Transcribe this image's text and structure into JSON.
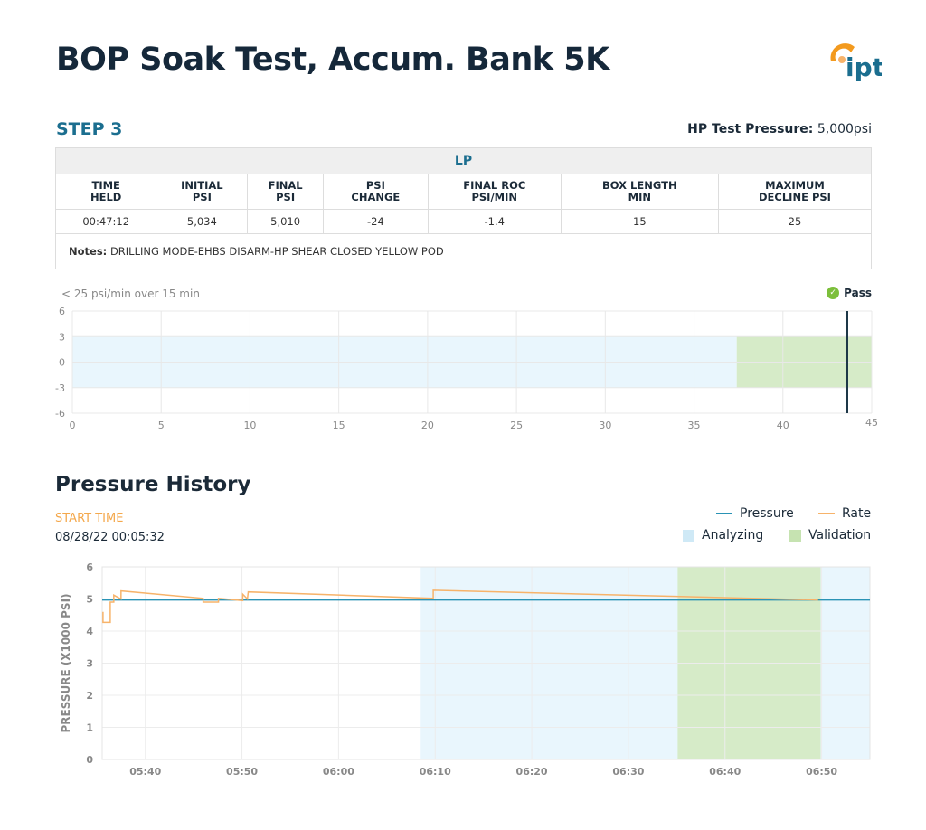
{
  "title": "BOP Soak Test, Accum. Bank 5K",
  "logo_text": "ipt",
  "step": "STEP 3",
  "hp_label": "HP Test Pressure:",
  "hp_value": "5,000psi",
  "table": {
    "section": "LP",
    "headers": [
      [
        "TIME",
        "HELD"
      ],
      [
        "INITIAL",
        "PSI"
      ],
      [
        "FINAL",
        "PSI"
      ],
      [
        "PSI",
        "CHANGE"
      ],
      [
        "FINAL ROC",
        "PSI/MIN"
      ],
      [
        "BOX LENGTH",
        "MIN"
      ],
      [
        "MAXIMUM",
        "DECLINE PSI"
      ]
    ],
    "values": [
      "00:47:12",
      "5,034",
      "5,010",
      "-24",
      "-1.4",
      "15",
      "25"
    ],
    "notes_label": "Notes:",
    "notes": "DRILLING MODE-EHBS DISARM-HP SHEAR CLOSED YELLOW POD"
  },
  "criteria": "< 25 psi/min over 15 min",
  "status": "Pass",
  "colors": {
    "pressure": "#2a93b5",
    "rate": "#f7b36a",
    "analyzing": "#e9f6fd",
    "validation": "#d6ebc8",
    "marker": "#1d3747",
    "pass": "#7cbf3b"
  },
  "chart_data": [
    {
      "type": "area",
      "title": "",
      "xlim": [
        0,
        45
      ],
      "ylim": [
        -6,
        6
      ],
      "xticks": [
        0,
        5,
        10,
        15,
        20,
        25,
        30,
        35,
        40,
        45
      ],
      "yticks": [
        6,
        3,
        0,
        -3,
        -6
      ],
      "grid": true,
      "band": [
        -3,
        3
      ],
      "analyzing": [
        0,
        37.4
      ],
      "validation": [
        37.4,
        45
      ],
      "marker_x": 43.6
    },
    {
      "type": "line",
      "title": "Pressure History",
      "start_time_label": "START TIME",
      "start_time": "08/28/22 00:05:32",
      "ylabel": "PRESSURE (X1000 PSI)",
      "ylim": [
        0,
        6
      ],
      "yticks": [
        0,
        1,
        2,
        3,
        4,
        5,
        6
      ],
      "xlim": [
        "05:35:32",
        "06:55:00"
      ],
      "xticks": [
        "05:40",
        "05:50",
        "06:00",
        "06:10",
        "06:20",
        "06:30",
        "06:40",
        "06:50"
      ],
      "grid": true,
      "legend_placement": "top-right",
      "legend": [
        "Pressure",
        "Rate",
        "Analyzing",
        "Validation"
      ],
      "analyzing": [
        "06:08:30",
        "06:55:00"
      ],
      "validation": [
        "06:35:06",
        "06:49:54"
      ],
      "series": [
        {
          "name": "Pressure",
          "points": [
            [
              "05:35:32",
              4.97
            ],
            [
              "06:55:00",
              4.97
            ]
          ]
        },
        {
          "name": "Rate",
          "points": [
            [
              "05:35:37",
              4.6
            ],
            [
              "05:35:37",
              4.27
            ],
            [
              "05:36:22",
              4.27
            ],
            [
              "05:36:22",
              4.9
            ],
            [
              "05:36:44",
              4.9
            ],
            [
              "05:36:44",
              5.12
            ],
            [
              "05:37:29",
              5.0
            ],
            [
              "05:37:29",
              5.25
            ],
            [
              "05:45:59",
              5.02
            ],
            [
              "05:45:59",
              4.9
            ],
            [
              "05:47:34",
              4.9
            ],
            [
              "05:47:34",
              5.02
            ],
            [
              "05:50:05",
              4.95
            ],
            [
              "05:50:05",
              5.15
            ],
            [
              "05:50:34",
              5.0
            ],
            [
              "05:50:39",
              5.22
            ],
            [
              "06:09:48",
              5.02
            ],
            [
              "06:09:48",
              5.27
            ],
            [
              "06:49:38",
              4.97
            ]
          ]
        }
      ]
    }
  ]
}
